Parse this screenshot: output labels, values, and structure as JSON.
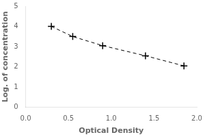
{
  "chart_data": {
    "type": "line",
    "x": [
      0.3,
      0.55,
      0.9,
      1.4,
      1.85
    ],
    "values": [
      4.0,
      3.5,
      3.05,
      2.55,
      2.05
    ],
    "xlabel": "Optical Density",
    "ylabel": "Log. of concentration",
    "xlim": [
      0,
      2
    ],
    "ylim": [
      0,
      5
    ],
    "xticks": [
      {
        "value": 0,
        "label": "0.0"
      },
      {
        "value": 0.5,
        "label": "0.5"
      },
      {
        "value": 1,
        "label": "1.0"
      },
      {
        "value": 1.5,
        "label": "1.5"
      },
      {
        "value": 2,
        "label": "2.0"
      }
    ],
    "yticks": [
      0,
      1,
      2,
      3,
      4,
      5
    ],
    "color": "#000000",
    "marker": "plus",
    "line_style": "dashed",
    "grid": false
  }
}
